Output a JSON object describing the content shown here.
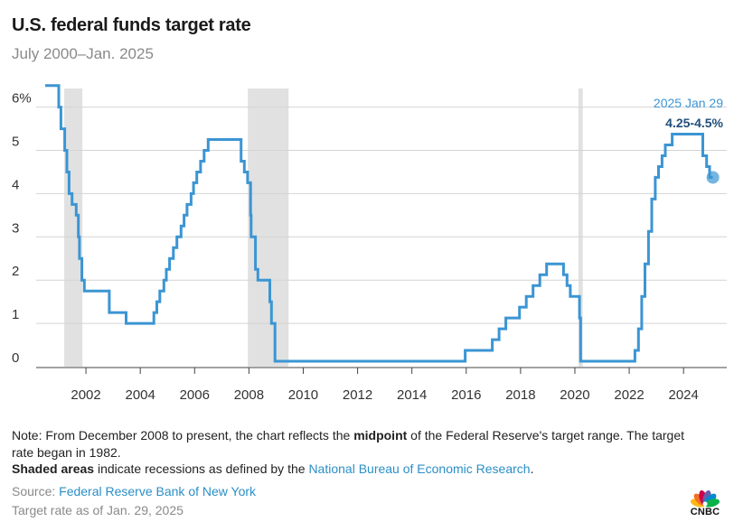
{
  "header": {
    "title": "U.S. federal funds target rate",
    "subtitle": "July 2000–Jan. 2025"
  },
  "chart_data": {
    "type": "line",
    "series": [
      {
        "values": [
          [
            2000.5,
            6.5
          ],
          [
            2001.0,
            6.5
          ],
          [
            2001.0,
            6.0
          ],
          [
            2001.08,
            6.0
          ],
          [
            2001.08,
            5.5
          ],
          [
            2001.22,
            5.5
          ],
          [
            2001.22,
            5.0
          ],
          [
            2001.3,
            5.0
          ],
          [
            2001.3,
            4.5
          ],
          [
            2001.38,
            4.5
          ],
          [
            2001.38,
            4.0
          ],
          [
            2001.49,
            4.0
          ],
          [
            2001.49,
            3.75
          ],
          [
            2001.64,
            3.75
          ],
          [
            2001.64,
            3.5
          ],
          [
            2001.72,
            3.5
          ],
          [
            2001.72,
            3.0
          ],
          [
            2001.76,
            3.0
          ],
          [
            2001.76,
            2.5
          ],
          [
            2001.85,
            2.5
          ],
          [
            2001.85,
            2.0
          ],
          [
            2001.94,
            2.0
          ],
          [
            2001.94,
            1.75
          ],
          [
            2002.86,
            1.75
          ],
          [
            2002.86,
            1.25
          ],
          [
            2003.48,
            1.25
          ],
          [
            2003.48,
            1.0
          ],
          [
            2004.5,
            1.0
          ],
          [
            2004.5,
            1.25
          ],
          [
            2004.61,
            1.25
          ],
          [
            2004.61,
            1.5
          ],
          [
            2004.72,
            1.5
          ],
          [
            2004.72,
            1.75
          ],
          [
            2004.87,
            1.75
          ],
          [
            2004.87,
            2.0
          ],
          [
            2004.96,
            2.0
          ],
          [
            2004.96,
            2.25
          ],
          [
            2005.08,
            2.25
          ],
          [
            2005.08,
            2.5
          ],
          [
            2005.22,
            2.5
          ],
          [
            2005.22,
            2.75
          ],
          [
            2005.35,
            2.75
          ],
          [
            2005.35,
            3.0
          ],
          [
            2005.5,
            3.0
          ],
          [
            2005.5,
            3.25
          ],
          [
            2005.61,
            3.25
          ],
          [
            2005.61,
            3.5
          ],
          [
            2005.72,
            3.5
          ],
          [
            2005.72,
            3.75
          ],
          [
            2005.87,
            3.75
          ],
          [
            2005.87,
            4.0
          ],
          [
            2005.96,
            4.0
          ],
          [
            2005.96,
            4.25
          ],
          [
            2006.08,
            4.25
          ],
          [
            2006.08,
            4.5
          ],
          [
            2006.22,
            4.5
          ],
          [
            2006.22,
            4.75
          ],
          [
            2006.35,
            4.75
          ],
          [
            2006.35,
            5.0
          ],
          [
            2006.5,
            5.0
          ],
          [
            2006.5,
            5.25
          ],
          [
            2007.71,
            5.25
          ],
          [
            2007.71,
            4.75
          ],
          [
            2007.83,
            4.75
          ],
          [
            2007.83,
            4.5
          ],
          [
            2007.95,
            4.5
          ],
          [
            2007.95,
            4.25
          ],
          [
            2008.06,
            4.25
          ],
          [
            2008.06,
            3.5
          ],
          [
            2008.08,
            3.5
          ],
          [
            2008.08,
            3.0
          ],
          [
            2008.24,
            3.0
          ],
          [
            2008.24,
            2.25
          ],
          [
            2008.33,
            2.25
          ],
          [
            2008.33,
            2.0
          ],
          [
            2008.77,
            2.0
          ],
          [
            2008.77,
            1.5
          ],
          [
            2008.83,
            1.5
          ],
          [
            2008.83,
            1.0
          ],
          [
            2008.96,
            1.0
          ],
          [
            2008.96,
            0.125
          ],
          [
            2015.96,
            0.125
          ],
          [
            2015.96,
            0.375
          ],
          [
            2016.96,
            0.375
          ],
          [
            2016.96,
            0.625
          ],
          [
            2017.21,
            0.625
          ],
          [
            2017.21,
            0.875
          ],
          [
            2017.46,
            0.875
          ],
          [
            2017.46,
            1.125
          ],
          [
            2017.96,
            1.125
          ],
          [
            2017.96,
            1.375
          ],
          [
            2018.21,
            1.375
          ],
          [
            2018.21,
            1.625
          ],
          [
            2018.46,
            1.625
          ],
          [
            2018.46,
            1.875
          ],
          [
            2018.71,
            1.875
          ],
          [
            2018.71,
            2.125
          ],
          [
            2018.96,
            2.125
          ],
          [
            2018.96,
            2.375
          ],
          [
            2019.58,
            2.375
          ],
          [
            2019.58,
            2.125
          ],
          [
            2019.71,
            2.125
          ],
          [
            2019.71,
            1.875
          ],
          [
            2019.83,
            1.875
          ],
          [
            2019.83,
            1.625
          ],
          [
            2020.17,
            1.625
          ],
          [
            2020.17,
            1.125
          ],
          [
            2020.21,
            1.125
          ],
          [
            2020.21,
            0.125
          ],
          [
            2022.21,
            0.125
          ],
          [
            2022.21,
            0.375
          ],
          [
            2022.34,
            0.375
          ],
          [
            2022.34,
            0.875
          ],
          [
            2022.46,
            0.875
          ],
          [
            2022.46,
            1.625
          ],
          [
            2022.58,
            1.625
          ],
          [
            2022.58,
            2.375
          ],
          [
            2022.71,
            2.375
          ],
          [
            2022.71,
            3.125
          ],
          [
            2022.83,
            3.125
          ],
          [
            2022.83,
            3.875
          ],
          [
            2022.96,
            3.875
          ],
          [
            2022.96,
            4.375
          ],
          [
            2023.08,
            4.375
          ],
          [
            2023.08,
            4.625
          ],
          [
            2023.21,
            4.625
          ],
          [
            2023.21,
            4.875
          ],
          [
            2023.33,
            4.875
          ],
          [
            2023.33,
            5.125
          ],
          [
            2023.58,
            5.125
          ],
          [
            2023.58,
            5.375
          ],
          [
            2024.71,
            5.375
          ],
          [
            2024.71,
            4.875
          ],
          [
            2024.85,
            4.875
          ],
          [
            2024.85,
            4.625
          ],
          [
            2024.96,
            4.625
          ],
          [
            2024.96,
            4.375
          ],
          [
            2025.08,
            4.375
          ]
        ]
      }
    ],
    "endpoint": {
      "x": 2025.08,
      "y": 4.375
    },
    "recessions": [
      [
        2001.2,
        2001.87
      ],
      [
        2007.96,
        2009.46
      ],
      [
        2020.13,
        2020.29
      ]
    ],
    "xlim": [
      2000.0,
      2025.3
    ],
    "ylim": [
      0,
      6.6
    ],
    "x_ticks": [
      {
        "v": 2002,
        "label": "2002"
      },
      {
        "v": 2004,
        "label": "2004"
      },
      {
        "v": 2006,
        "label": "2006"
      },
      {
        "v": 2008,
        "label": "2008"
      },
      {
        "v": 2010,
        "label": "2010"
      },
      {
        "v": 2012,
        "label": "2012"
      },
      {
        "v": 2014,
        "label": "2014"
      },
      {
        "v": 2016,
        "label": "2016"
      },
      {
        "v": 2018,
        "label": "2018"
      },
      {
        "v": 2020,
        "label": "2020"
      },
      {
        "v": 2022,
        "label": "2022"
      },
      {
        "v": 2024,
        "label": "2024"
      }
    ],
    "y_ticks": [
      {
        "v": 0,
        "label": "0"
      },
      {
        "v": 1,
        "label": "1"
      },
      {
        "v": 2,
        "label": "2"
      },
      {
        "v": 3,
        "label": "3"
      },
      {
        "v": 4,
        "label": "4"
      },
      {
        "v": 5,
        "label": "5"
      },
      {
        "v": 6,
        "label": "6%"
      }
    ],
    "annotation": {
      "date": "2025 Jan 29",
      "value": "4.25-4.5%"
    },
    "grid": true,
    "colors": {
      "line": "#3b95d3",
      "recession": "#e1e1e1",
      "grid": "#d4d4d4",
      "axis": "#444444",
      "annotation": "#1f4e79",
      "annotation_date": "#3b95d3"
    }
  },
  "notes": {
    "note_prefix": "Note: From December 2008 to present, the chart reflects the ",
    "note_bold": "midpoint",
    "note_suffix": " of the Federal Reserve's target range. The target rate began in 1982.",
    "shaded_bold": "Shaded areas",
    "shaded_text": " indicate recessions as defined by the ",
    "shaded_link": "National Bureau of Economic Research",
    "shaded_end": ".",
    "source_label": "Source: ",
    "source_link": "Federal Reserve Bank of New York",
    "as_of": "Target rate as of Jan. 29, 2025"
  },
  "brand": {
    "logo_text": "CNBC",
    "logo_colors": [
      "#fdb813",
      "#f37021",
      "#cc004c",
      "#6460aa",
      "#0089d0",
      "#0db14b"
    ]
  }
}
